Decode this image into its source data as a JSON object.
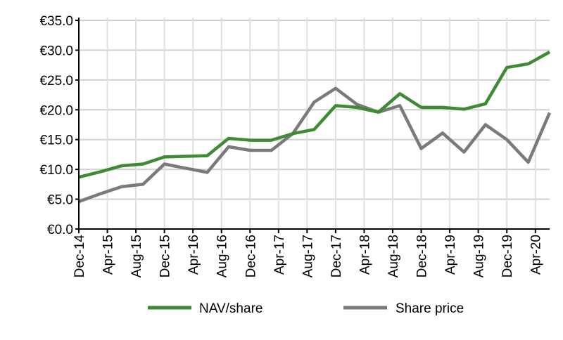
{
  "chart_data": {
    "type": "line",
    "title": "",
    "xlabel": "",
    "ylabel": "",
    "ylim": [
      0,
      35
    ],
    "y_step": 5,
    "y_ticks": [
      "€0.0",
      "€5.0",
      "€10.0",
      "€15.0",
      "€20.0",
      "€25.0",
      "€30.0",
      "€35.0"
    ],
    "x_ticks": [
      "Dec-14",
      "Apr-15",
      "Aug-15",
      "Dec-15",
      "Apr-16",
      "Aug-16",
      "Dec-16",
      "Apr-17",
      "Aug-17",
      "Dec-17",
      "Apr-18",
      "Aug-18",
      "Dec-18",
      "Apr-19",
      "Aug-19",
      "Dec-19",
      "Apr-20"
    ],
    "xlim": [
      "Dec-14",
      "Jun-20"
    ],
    "x": [
      "Dec-14",
      "Mar-15",
      "Jun-15",
      "Sep-15",
      "Dec-15",
      "Mar-16",
      "Jun-16",
      "Sep-16",
      "Dec-16",
      "Mar-17",
      "Jun-17",
      "Sep-17",
      "Dec-17",
      "Mar-18",
      "Jun-18",
      "Sep-18",
      "Dec-18",
      "Mar-19",
      "Jun-19",
      "Sep-19",
      "Dec-19",
      "Mar-20",
      "Jun-20"
    ],
    "grid": true,
    "legend_position": "bottom",
    "series": [
      {
        "name": "NAV/share",
        "color": "#3e8a35",
        "values": [
          8.7,
          9.6,
          10.6,
          10.9,
          12.1,
          12.2,
          12.3,
          15.2,
          14.9,
          14.9,
          16.0,
          16.7,
          20.7,
          20.4,
          19.6,
          22.7,
          20.4,
          20.4,
          20.1,
          21.0,
          27.1,
          27.7,
          29.7
        ]
      },
      {
        "name": "Share price",
        "color": "#7a7a7a",
        "values": [
          4.6,
          5.9,
          7.1,
          7.5,
          10.9,
          10.2,
          9.5,
          13.8,
          13.2,
          13.2,
          16.0,
          21.3,
          23.6,
          20.9,
          19.6,
          20.7,
          13.5,
          16.1,
          12.9,
          17.5,
          15.0,
          11.2,
          19.5
        ]
      }
    ]
  }
}
